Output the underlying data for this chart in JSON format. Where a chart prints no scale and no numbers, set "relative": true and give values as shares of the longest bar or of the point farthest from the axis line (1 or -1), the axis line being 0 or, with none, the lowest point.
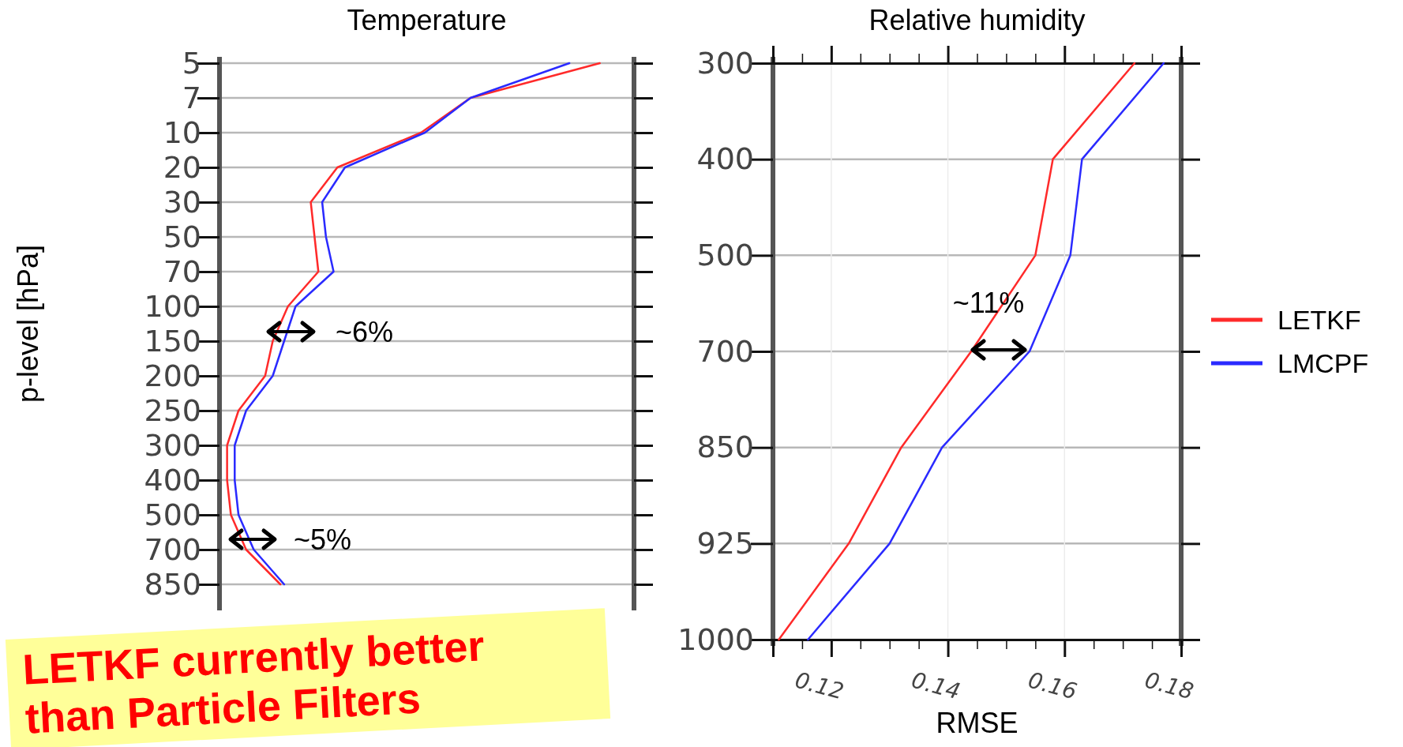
{
  "chart_data": [
    {
      "type": "line",
      "title": "Temperature",
      "ylabel": "p-level [hPa]",
      "orientation": "horizontal",
      "relative": true,
      "grid": "y",
      "categories": [
        "5",
        "7",
        "10",
        "20",
        "30",
        "50",
        "70",
        "100",
        "150",
        "200",
        "250",
        "300",
        "400",
        "500",
        "700",
        "850"
      ],
      "series": [
        {
          "color": "#ff2a2a",
          "values": [
            1.0,
            0.66,
            0.53,
            0.31,
            0.24,
            0.25,
            0.26,
            0.18,
            0.14,
            0.12,
            0.05,
            0.02,
            0.02,
            0.03,
            0.07,
            0.16
          ]
        },
        {
          "color": "#2a2aff",
          "values": [
            0.92,
            0.66,
            0.54,
            0.33,
            0.27,
            0.28,
            0.3,
            0.2,
            0.17,
            0.14,
            0.07,
            0.04,
            0.04,
            0.05,
            0.09,
            0.17
          ]
        }
      ],
      "annotations": [
        "~6%",
        "~5%",
        "LETKF currently better than Particle Filters"
      ]
    },
    {
      "type": "line",
      "title": "Relative humidity",
      "xlabel": "RMSE",
      "orientation": "horizontal",
      "grid": true,
      "legend": "right",
      "categories": [
        "300",
        "400",
        "500",
        "700",
        "850",
        "925",
        "1000"
      ],
      "xlim": [
        0.11,
        0.18
      ],
      "xticks": [
        {
          "value": 0.11,
          "label": null
        },
        {
          "value": 0.115,
          "label": null
        },
        0.12,
        {
          "value": 0.125,
          "label": null
        },
        {
          "value": 0.13,
          "label": null
        },
        {
          "value": 0.135,
          "label": null
        },
        0.14,
        {
          "value": 0.145,
          "label": null
        },
        {
          "value": 0.15,
          "label": null
        },
        {
          "value": 0.155,
          "label": null
        },
        0.16,
        {
          "value": 0.165,
          "label": null
        },
        {
          "value": 0.17,
          "label": null
        },
        {
          "value": 0.175,
          "label": null
        },
        0.18
      ],
      "series": [
        {
          "name": "LETKF",
          "color": "#ff2a2a",
          "values": [
            0.172,
            0.158,
            0.155,
            0.144,
            0.132,
            0.123,
            0.111
          ]
        },
        {
          "name": "LMCPF",
          "color": "#2a2aff",
          "values": [
            0.177,
            0.163,
            0.161,
            0.154,
            0.139,
            0.13,
            0.116
          ]
        }
      ],
      "annotations": [
        "~11%"
      ]
    }
  ]
}
